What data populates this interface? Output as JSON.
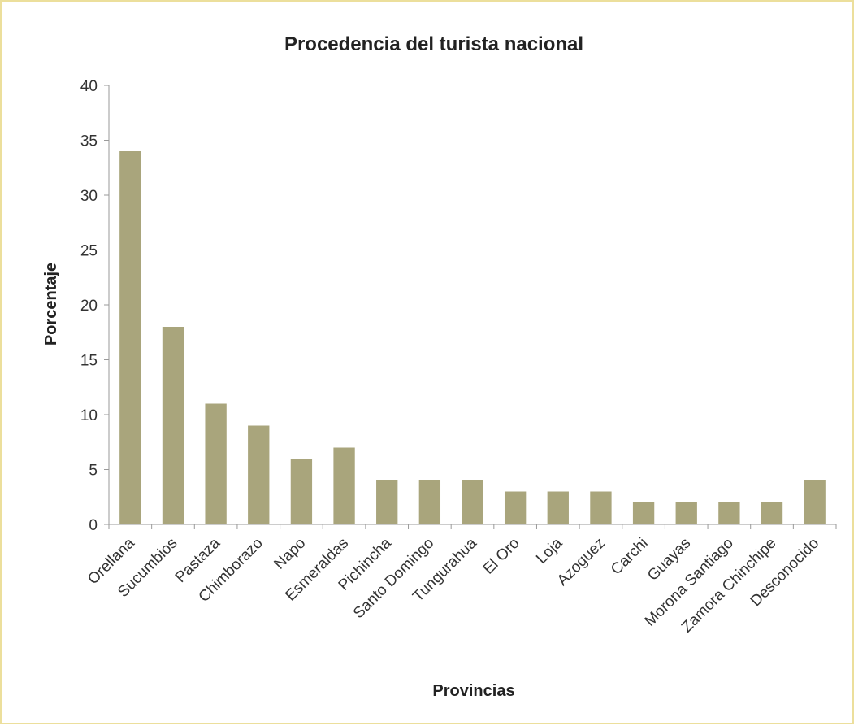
{
  "chart_data": {
    "type": "bar",
    "title": "Procedencia del turista nacional",
    "xlabel": "Provincias",
    "ylabel": "Porcentaje",
    "ylim": [
      0,
      40
    ],
    "yticks": [
      0,
      5,
      10,
      15,
      20,
      25,
      30,
      35,
      40
    ],
    "grid": false,
    "legend": "none",
    "bar_color": "#a9a57c",
    "categories": [
      "Orellana",
      "Sucumbios",
      "Pastaza",
      "Chimborazo",
      "Napo",
      "Esmeraldas",
      "Pichincha",
      "Santo Domingo",
      "Tungurahua",
      "El Oro",
      "Loja",
      "Azoguez",
      "Carchi",
      "Guayas",
      "Morona Santiago",
      "Zamora Chinchipe",
      "Desconocido"
    ],
    "values": [
      34,
      18,
      11,
      9,
      6,
      7,
      4,
      4,
      4,
      3,
      3,
      3,
      2,
      2,
      2,
      2,
      4
    ]
  }
}
